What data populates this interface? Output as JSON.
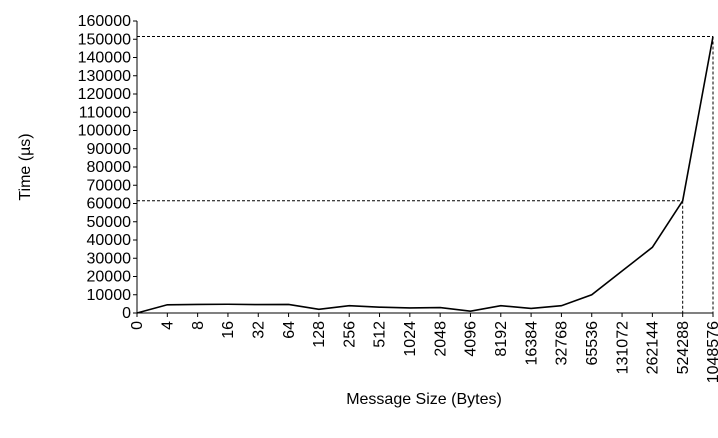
{
  "chart_data": {
    "type": "line",
    "x_label": "Message Size (Bytes)",
    "y_label": "Time (µs)",
    "categories": [
      "0",
      "4",
      "8",
      "16",
      "32",
      "64",
      "128",
      "256",
      "512",
      "1024",
      "2048",
      "4096",
      "8192",
      "16384",
      "32768",
      "65536",
      "131072",
      "262144",
      "524288",
      "1048576"
    ],
    "series": [
      {
        "name": null,
        "color": "#000000",
        "values": [
          0,
          4500,
          4700,
          4800,
          4600,
          4700,
          2000,
          4000,
          3200,
          2800,
          3000,
          1000,
          4000,
          2500,
          4000,
          10000,
          23000,
          36000,
          61500,
          151500
        ]
      }
    ],
    "ylim": [
      0,
      160000
    ],
    "yticks": [
      0,
      10000,
      20000,
      30000,
      40000,
      50000,
      60000,
      70000,
      80000,
      90000,
      100000,
      110000,
      120000,
      130000,
      140000,
      150000,
      160000
    ],
    "drop_lines_from": "524288"
  }
}
